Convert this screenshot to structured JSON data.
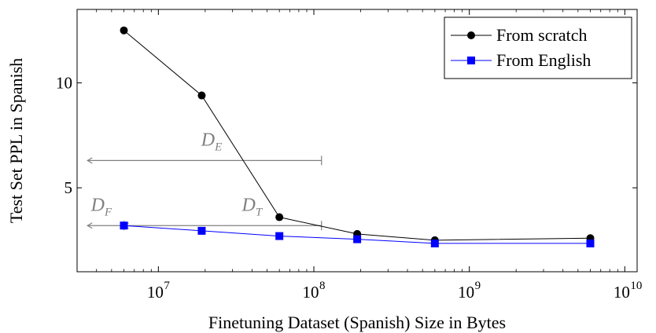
{
  "chart_data": {
    "type": "line",
    "xscale": "log",
    "xlabel": "Finetuning Dataset (Spanish) Size in Bytes",
    "ylabel": "Test Set PPL in Spanish",
    "xlim": [
      3000000,
      12000000000
    ],
    "ylim": [
      1.0,
      13.5
    ],
    "x_ticks": [
      {
        "value": 10000000,
        "base": "10",
        "exp": "7"
      },
      {
        "value": 100000000,
        "base": "10",
        "exp": "8"
      },
      {
        "value": 1000000000,
        "base": "10",
        "exp": "9"
      },
      {
        "value": 10000000000,
        "base": "10",
        "exp": "10"
      }
    ],
    "y_ticks": [
      {
        "value": 5,
        "label": "5"
      },
      {
        "value": 10,
        "label": "10"
      }
    ],
    "legend_position": "top-right",
    "series": [
      {
        "name": "From scratch",
        "color": "#000000",
        "marker": "circle",
        "x": [
          6000000,
          19000000,
          60000000,
          190000000,
          600000000,
          6000000000
        ],
        "y": [
          12.5,
          9.4,
          3.6,
          2.8,
          2.5,
          2.6
        ]
      },
      {
        "name": "From English",
        "color": "#0000ff",
        "marker": "square",
        "x": [
          6000000,
          19000000,
          60000000,
          190000000,
          600000000,
          6000000000
        ],
        "y": [
          3.2,
          2.95,
          2.7,
          2.55,
          2.35,
          2.35
        ]
      }
    ],
    "annotations": [
      {
        "label": "D",
        "sub": "E",
        "x_start": 3500000,
        "x_end": 112000000,
        "y": 6.3,
        "label_x": 22000000,
        "label_y": 7.0
      },
      {
        "label": "D",
        "sub": "F",
        "x_start": 3500000,
        "x_end": 6000000,
        "y": 3.2,
        "label_x": 4300000,
        "label_y": 3.9
      },
      {
        "label": "D",
        "sub": "T",
        "x_start": 6000000,
        "x_end": 112000000,
        "y": 3.2,
        "label_x": 40000000,
        "label_y": 3.9
      }
    ]
  }
}
